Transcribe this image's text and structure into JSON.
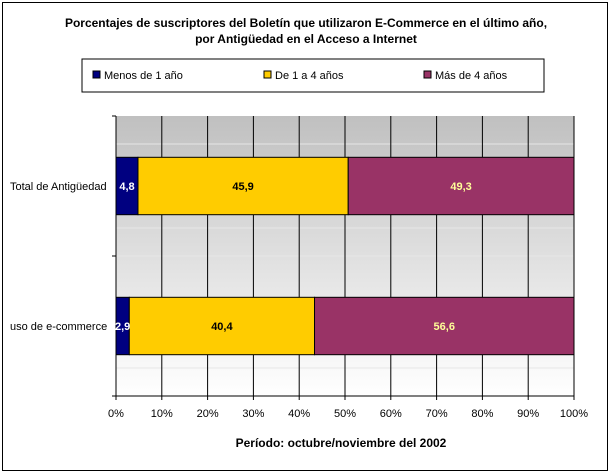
{
  "chart_data": {
    "type": "bar",
    "orientation": "horizontal",
    "stacked": "percent",
    "title": "Porcentajes de suscriptores del Boletín que utilizaron E-Commerce en el último año,",
    "subtitle": "por Antigüedad en el Acceso a Internet",
    "xlabel": "Período: octubre/noviembre del 2002",
    "ylabel": "",
    "categories": [
      "Total de Antigüedad",
      "uso de e-commerce"
    ],
    "series": [
      {
        "name": "Menos de 1 año",
        "values": [
          4.8,
          2.9
        ],
        "labels": [
          "4,8",
          "2,9"
        ],
        "color": "#000080",
        "label_color": "#ffffff"
      },
      {
        "name": "De 1 a 4 años",
        "values": [
          45.9,
          40.4
        ],
        "labels": [
          "45,9",
          "40,4"
        ],
        "color": "#ffcc00",
        "label_color": "#000000"
      },
      {
        "name": "Más de 4 años",
        "values": [
          49.3,
          56.6
        ],
        "labels": [
          "49,3",
          "56,6"
        ],
        "color": "#993366",
        "label_color": "#ffff99"
      }
    ],
    "xlim": [
      0,
      100
    ],
    "xticks": [
      "0%",
      "10%",
      "20%",
      "30%",
      "40%",
      "50%",
      "60%",
      "70%",
      "80%",
      "90%",
      "100%"
    ],
    "grid": true,
    "legend_position": "top",
    "plot_background": "gradient gray"
  }
}
